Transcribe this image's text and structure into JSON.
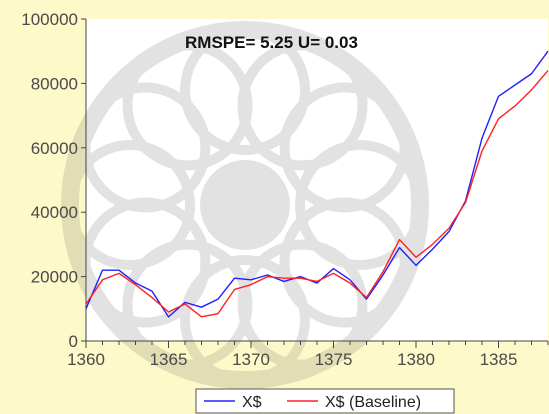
{
  "chart_data": {
    "type": "line",
    "annotation": "RMSPE= 5.25  U= 0.03",
    "xlim": [
      1360,
      1388
    ],
    "ylim": [
      0,
      100000
    ],
    "x_ticks": [
      1360,
      1365,
      1370,
      1375,
      1380,
      1385
    ],
    "y_ticks": [
      0,
      20000,
      40000,
      60000,
      80000,
      100000
    ],
    "x": [
      1360,
      1361,
      1362,
      1363,
      1364,
      1365,
      1366,
      1367,
      1368,
      1369,
      1370,
      1371,
      1372,
      1373,
      1374,
      1375,
      1376,
      1377,
      1378,
      1379,
      1380,
      1381,
      1382,
      1383,
      1384,
      1385,
      1386,
      1387,
      1388
    ],
    "series": [
      {
        "name": "X$",
        "color": "#2020ff",
        "values": [
          10000,
          22000,
          22000,
          18000,
          15500,
          7500,
          12000,
          10500,
          13000,
          19500,
          19000,
          20500,
          18500,
          20000,
          18000,
          22500,
          19000,
          13000,
          20500,
          29000,
          23500,
          28500,
          34000,
          43500,
          63000,
          76000,
          79500,
          83000,
          90000
        ]
      },
      {
        "name": "X$ (Baseline)",
        "color": "#ff2020",
        "values": [
          11500,
          19000,
          21000,
          17500,
          13500,
          9000,
          11500,
          7500,
          8500,
          16000,
          17500,
          20000,
          19500,
          19500,
          18500,
          21000,
          18000,
          13500,
          21500,
          31500,
          26000,
          30000,
          35000,
          43000,
          59000,
          69000,
          73000,
          78000,
          84000
        ]
      }
    ],
    "legend": {
      "position": "bottom",
      "entries": [
        "X$",
        "X$ (Baseline)"
      ]
    },
    "grid": false
  }
}
